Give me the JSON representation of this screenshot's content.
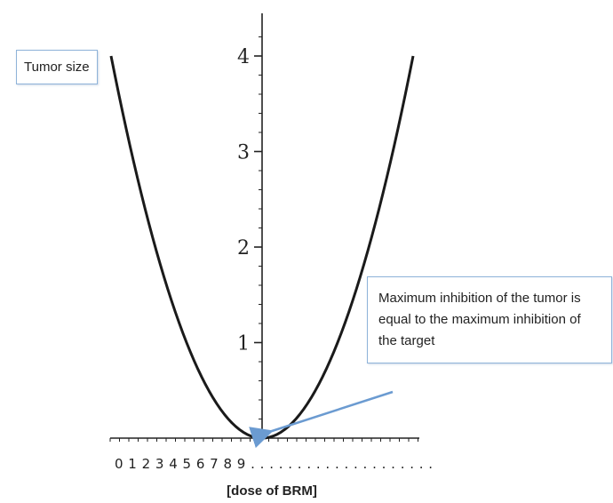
{
  "chart_data": {
    "type": "line",
    "series": [
      {
        "x": [
          -1.0,
          -0.9,
          -0.8,
          -0.7,
          -0.6,
          -0.5,
          -0.4,
          -0.3,
          -0.2,
          -0.1,
          0.0,
          0.1,
          0.2,
          0.3,
          0.4,
          0.5,
          0.6,
          0.7,
          0.8,
          0.9,
          1.0
        ],
        "y": [
          4.0,
          3.24,
          2.56,
          1.96,
          1.44,
          1.0,
          0.64,
          0.36,
          0.16,
          0.04,
          0.0,
          0.04,
          0.16,
          0.36,
          0.64,
          1.0,
          1.44,
          1.96,
          2.56,
          3.24,
          4.0
        ]
      }
    ],
    "ylabel": "Tumor size",
    "xlabel": "[dose of BRM]",
    "x_tick_text": "0 1 2 3 4 5 6 7 8 9 . . . . . . . . . . . . . . . . . . . .",
    "yticks": [
      1,
      2,
      3,
      4
    ],
    "ylim": [
      0,
      4.4
    ],
    "xlim": [
      -1,
      1
    ],
    "grid": false,
    "line_color": "#1a1a1a",
    "annotations": [
      {
        "text": "Maximum inhibition of the tumor is equal to the maximum inhibition of the target",
        "x": 0.0,
        "y": 0.0,
        "arrow_color": "#6b9bd1"
      }
    ]
  }
}
